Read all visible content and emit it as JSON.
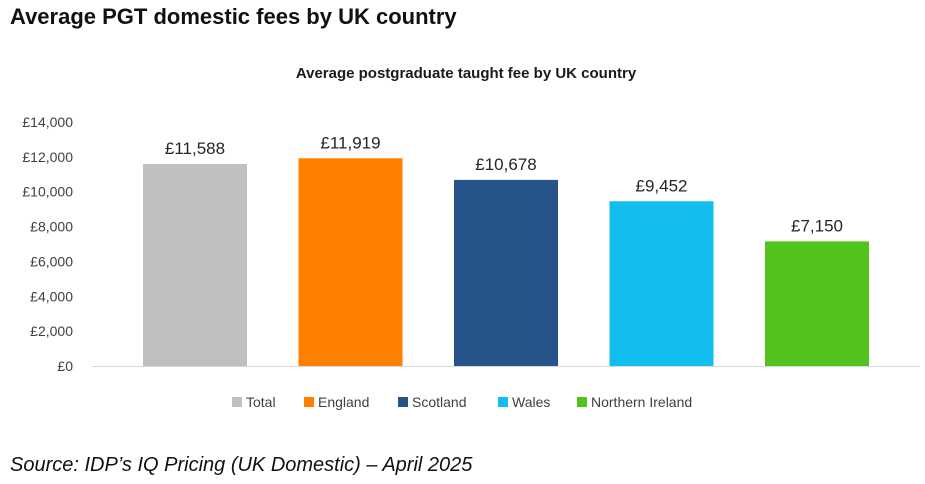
{
  "page": {
    "title": "Average PGT domestic fees by UK country",
    "source": "Source: IDP’s IQ Pricing (UK Domestic) – April 2025"
  },
  "chart_data": {
    "type": "bar",
    "title": "Average postgraduate taught fee by UK country",
    "xlabel": "",
    "ylabel": "",
    "categories": [
      "Total",
      "England",
      "Scotland",
      "Wales",
      "Northern Ireland"
    ],
    "values": [
      11588,
      11919,
      10678,
      9452,
      7150
    ],
    "data_labels": [
      "£11,588",
      "£11,919",
      "£10,678",
      "£9,452",
      "£7,150"
    ],
    "colors": [
      "#bfbfbf",
      "#ff8000",
      "#26548a",
      "#12bdf0",
      "#52c31c"
    ],
    "ylim": [
      0,
      14000
    ],
    "y_ticks": [
      0,
      2000,
      4000,
      6000,
      8000,
      10000,
      12000,
      14000
    ],
    "y_tick_labels": [
      "£0",
      "£2,000",
      "£4,000",
      "£6,000",
      "£8,000",
      "£10,000",
      "£12,000",
      "£14,000"
    ],
    "grid": false,
    "legend_position": "bottom"
  }
}
